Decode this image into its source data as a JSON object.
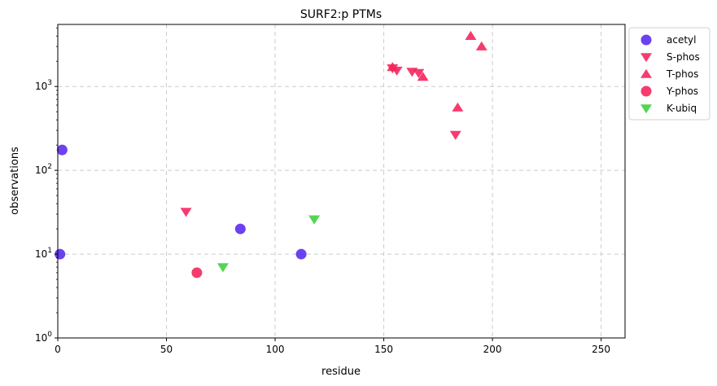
{
  "chart_data": {
    "type": "scatter",
    "title": "SURF2:p PTMs",
    "xlabel": "residue",
    "ylabel": "observations",
    "xlim": [
      0,
      261
    ],
    "ylim": [
      1,
      5500
    ],
    "yscale": "log",
    "grid": true,
    "legend_position": "outside-top-right",
    "x_ticks": [
      "0",
      "50",
      "100",
      "150",
      "200",
      "250"
    ],
    "x_tick_values": [
      0,
      50,
      100,
      150,
      200,
      250
    ],
    "y_tick_values": [
      1,
      10,
      100,
      1000
    ],
    "y_tick_exponents": [
      "0",
      "1",
      "2",
      "3"
    ],
    "series": [
      {
        "name": "acetyl",
        "marker": "circle",
        "color": "#5b2cf0",
        "points": [
          {
            "x": 1,
            "y": 10
          },
          {
            "x": 2,
            "y": 175
          },
          {
            "x": 84,
            "y": 20
          },
          {
            "x": 112,
            "y": 10
          }
        ]
      },
      {
        "name": "S-phos",
        "marker": "triangle-down",
        "color": "#f5265e",
        "points": [
          {
            "x": 59,
            "y": 32
          },
          {
            "x": 154,
            "y": 1650
          },
          {
            "x": 156,
            "y": 1550
          },
          {
            "x": 163,
            "y": 1500
          },
          {
            "x": 166,
            "y": 1450
          },
          {
            "x": 183,
            "y": 265
          }
        ]
      },
      {
        "name": "T-phos",
        "marker": "triangle-up",
        "color": "#f5265e",
        "points": [
          {
            "x": 154,
            "y": 1700
          },
          {
            "x": 168,
            "y": 1300
          },
          {
            "x": 184,
            "y": 560
          },
          {
            "x": 190,
            "y": 4000
          },
          {
            "x": 195,
            "y": 3000
          }
        ]
      },
      {
        "name": "Y-phos",
        "marker": "circle",
        "color": "#f5265e",
        "points": [
          {
            "x": 64,
            "y": 6
          }
        ]
      },
      {
        "name": "K-ubiq",
        "marker": "triangle-down",
        "color": "#3fd23f",
        "points": [
          {
            "x": 76,
            "y": 7
          },
          {
            "x": 118,
            "y": 26
          }
        ]
      }
    ]
  }
}
